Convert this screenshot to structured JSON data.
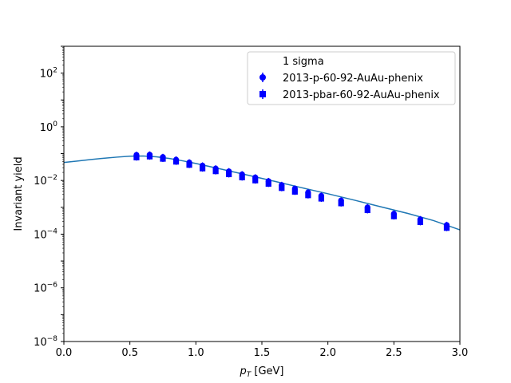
{
  "chart_data": {
    "type": "scatter",
    "xlabel_base": "p",
    "xlabel_sub": "T",
    "xlabel_unit": " [GeV]",
    "ylabel": "Invariant yield",
    "xlim": [
      0.0,
      3.0
    ],
    "ylim": [
      1e-08,
      1000
    ],
    "yscale": "log",
    "grid": false,
    "legend_position": "top-right",
    "legend_title": "1 sigma",
    "x_ticks": [
      "0.0",
      "0.5",
      "1.0",
      "1.5",
      "2.0",
      "2.5",
      "3.0"
    ],
    "y_ticks": [
      {
        "base": "10",
        "exp": "−8",
        "value": 1e-08
      },
      {
        "base": "10",
        "exp": "−6",
        "value": 1e-06
      },
      {
        "base": "10",
        "exp": "−4",
        "value": 0.0001
      },
      {
        "base": "10",
        "exp": "−2",
        "value": 0.01
      },
      {
        "base": "10",
        "exp": "0",
        "value": 1
      },
      {
        "base": "10",
        "exp": "2",
        "value": 100
      }
    ],
    "series": [
      {
        "name": "2013-p-60-92-AuAu-phenix",
        "marker": "circle",
        "color": "#0000ff",
        "x": [
          0.55,
          0.65,
          0.75,
          0.85,
          0.95,
          1.05,
          1.15,
          1.25,
          1.35,
          1.45,
          1.55,
          1.65,
          1.75,
          1.85,
          1.95,
          2.1,
          2.3,
          2.5,
          2.7,
          2.9
        ],
        "y": [
          0.09,
          0.092,
          0.075,
          0.06,
          0.047,
          0.036,
          0.028,
          0.022,
          0.017,
          0.013,
          0.0095,
          0.0068,
          0.005,
          0.0036,
          0.0027,
          0.0018,
          0.001,
          0.00058,
          0.00036,
          0.00022
        ]
      },
      {
        "name": "2013-pbar-60-92-AuAu-phenix",
        "marker": "square",
        "color": "#0000ff",
        "x": [
          0.55,
          0.65,
          0.75,
          0.85,
          0.95,
          1.05,
          1.15,
          1.25,
          1.35,
          1.45,
          1.55,
          1.65,
          1.75,
          1.85,
          1.95,
          2.1,
          2.3,
          2.5,
          2.7,
          2.9
        ],
        "y": [
          0.072,
          0.078,
          0.064,
          0.05,
          0.038,
          0.028,
          0.022,
          0.017,
          0.013,
          0.01,
          0.0075,
          0.0052,
          0.0038,
          0.0028,
          0.0021,
          0.0014,
          0.00078,
          0.00046,
          0.00028,
          0.00017
        ]
      }
    ],
    "fit_curve": {
      "color": "#1f77b4",
      "x": [
        0.0,
        0.1,
        0.2,
        0.3,
        0.4,
        0.5,
        0.6,
        0.7,
        0.8,
        0.9,
        1.0,
        1.2,
        1.4,
        1.6,
        1.8,
        2.0,
        2.2,
        2.4,
        2.6,
        2.8,
        3.0
      ],
      "y": [
        0.047,
        0.053,
        0.06,
        0.067,
        0.074,
        0.08,
        0.082,
        0.076,
        0.066,
        0.054,
        0.043,
        0.026,
        0.0155,
        0.0092,
        0.0054,
        0.0032,
        0.00185,
        0.00105,
        0.0006,
        0.00032,
        0.000145
      ]
    }
  }
}
